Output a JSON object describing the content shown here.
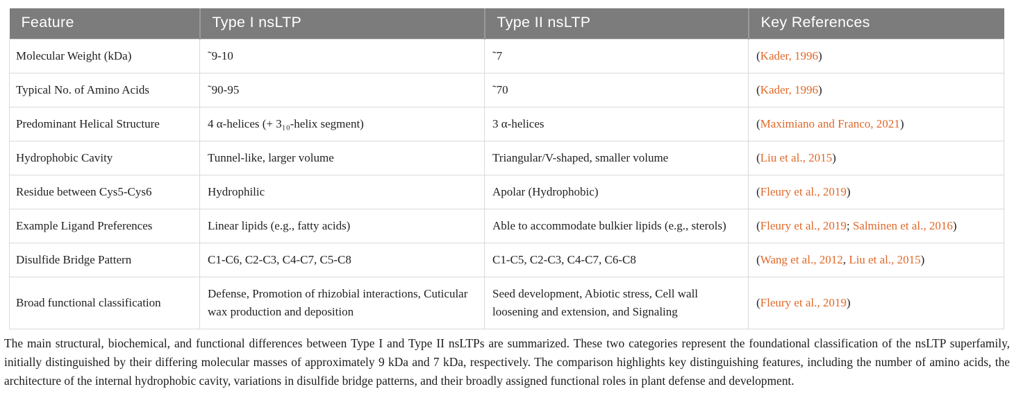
{
  "colors": {
    "header_bg": "#7c7c7c",
    "header_text": "#ffffff",
    "citation_link": "#e06828",
    "body_border": "#d9d9d9"
  },
  "table": {
    "columns": [
      "Feature",
      "Type I nsLTP",
      "Type II nsLTP",
      "Key References"
    ],
    "rows": [
      {
        "feature": "Molecular Weight (kDa)",
        "type1": "˜9-10",
        "type2": "˜7",
        "references": [
          {
            "text": "(",
            "link": false
          },
          {
            "text": "Kader, 1996",
            "link": true
          },
          {
            "text": ")",
            "link": false
          }
        ]
      },
      {
        "feature": "Typical No. of Amino Acids",
        "type1": "˜90-95",
        "type2": "˜70",
        "references": [
          {
            "text": "(",
            "link": false
          },
          {
            "text": "Kader, 1996",
            "link": true
          },
          {
            "text": ")",
            "link": false
          }
        ]
      },
      {
        "feature": "Predominant Helical Structure",
        "type1": "4 α-helices (+ 3₁₀-helix segment)",
        "type2": "3 α-helices",
        "references": [
          {
            "text": "(",
            "link": false
          },
          {
            "text": "Maximiano and Franco, 2021",
            "link": true
          },
          {
            "text": ")",
            "link": false
          }
        ]
      },
      {
        "feature": "Hydrophobic Cavity",
        "type1": "Tunnel-like, larger volume",
        "type2": "Triangular/V-shaped, smaller volume",
        "references": [
          {
            "text": "(",
            "link": false
          },
          {
            "text": "Liu et al., 2015",
            "link": true
          },
          {
            "text": ")",
            "link": false
          }
        ]
      },
      {
        "feature": "Residue between Cys5-Cys6",
        "type1": "Hydrophilic",
        "type2": "Apolar (Hydrophobic)",
        "references": [
          {
            "text": "(",
            "link": false
          },
          {
            "text": "Fleury et al., 2019",
            "link": true
          },
          {
            "text": ")",
            "link": false
          }
        ]
      },
      {
        "feature": "Example Ligand Preferences",
        "type1": "Linear lipids (e.g., fatty acids)",
        "type2": "Able to accommodate bulkier lipids (e.g., sterols)",
        "references": [
          {
            "text": "(",
            "link": false
          },
          {
            "text": "Fleury et al., 2019",
            "link": true
          },
          {
            "text": "; ",
            "link": false
          },
          {
            "text": "Salminen et al., 2016",
            "link": true
          },
          {
            "text": ")",
            "link": false
          }
        ]
      },
      {
        "feature": "Disulfide Bridge Pattern",
        "type1": "C1-C6, C2-C3, C4-C7, C5-C8",
        "type2": "C1-C5, C2-C3, C4-C7, C6-C8",
        "references": [
          {
            "text": "(",
            "link": false
          },
          {
            "text": "Wang et al., 2012",
            "link": true
          },
          {
            "text": ", ",
            "link": false
          },
          {
            "text": "Liu et al., 2015",
            "link": true
          },
          {
            "text": ")",
            "link": false
          }
        ]
      },
      {
        "feature": "Broad functional classification",
        "type1": "Defense, Promotion of rhizobial interactions, Cuticular wax production and deposition",
        "type2": "Seed development, Abiotic stress, Cell wall loosening and extension, and Signaling",
        "references": [
          {
            "text": "(",
            "link": false
          },
          {
            "text": "Fleury et al., 2019",
            "link": true
          },
          {
            "text": ")",
            "link": false
          }
        ]
      }
    ]
  },
  "caption": "The main structural, biochemical, and functional differences between Type I and Type II nsLTPs are summarized. These two categories represent the foundational classification of the nsLTP superfamily, initially distinguished by their differing molecular masses of approximately 9 kDa and 7 kDa, respectively. The comparison highlights key distinguishing features, including the number of amino acids, the architecture of the internal hydrophobic cavity, variations in disulfide bridge patterns, and their broadly assigned functional roles in plant defense and development."
}
